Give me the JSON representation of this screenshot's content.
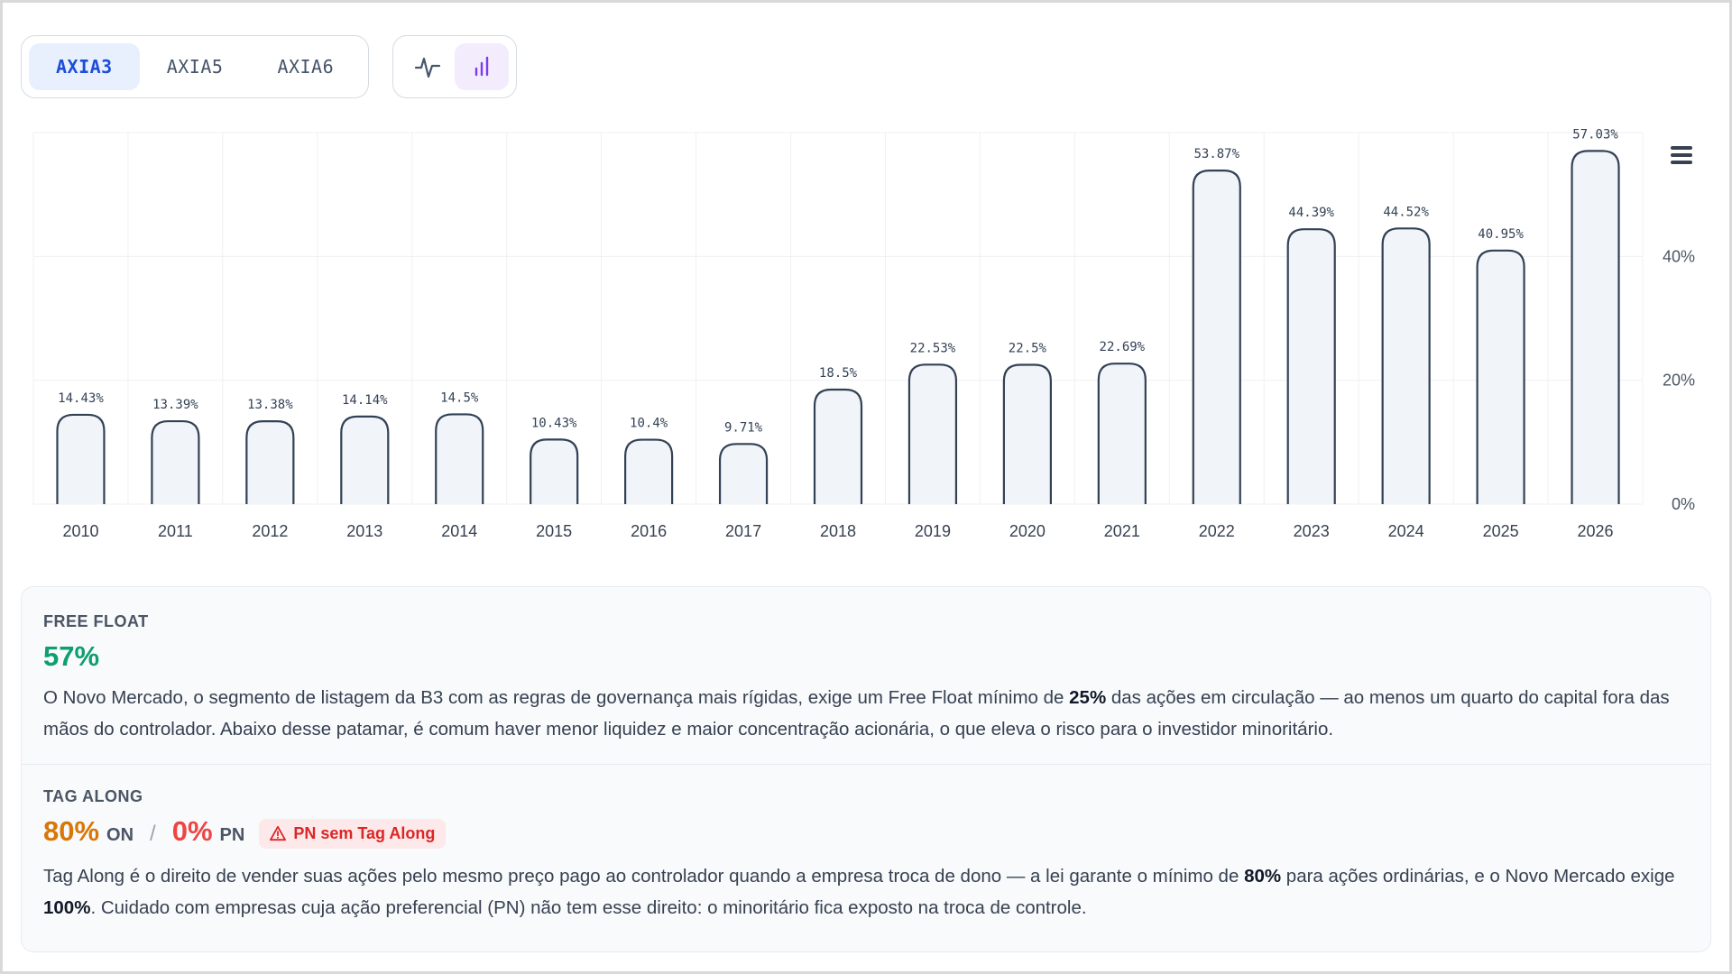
{
  "tickers": [
    {
      "label": "AXIA3",
      "active": true
    },
    {
      "label": "AXIA5",
      "active": false
    },
    {
      "label": "AXIA6",
      "active": false
    }
  ],
  "chart_mode": {
    "line_icon": "line-chart-icon",
    "bar_icon": "bar-chart-icon",
    "active": "bar"
  },
  "chart_data": {
    "type": "bar",
    "categories": [
      "2010",
      "2011",
      "2012",
      "2013",
      "2014",
      "2015",
      "2016",
      "2017",
      "2018",
      "2019",
      "2020",
      "2021",
      "2022",
      "2023",
      "2024",
      "2025",
      "2026"
    ],
    "values": [
      14.43,
      13.39,
      13.38,
      14.14,
      14.5,
      10.43,
      10.4,
      9.71,
      18.5,
      22.53,
      22.5,
      22.69,
      53.87,
      44.39,
      44.52,
      40.95,
      57.03
    ],
    "data_labels": [
      "14.43%",
      "13.39%",
      "13.38%",
      "14.14%",
      "14.5%",
      "10.43%",
      "10.4%",
      "9.71%",
      "18.5%",
      "22.53%",
      "22.5%",
      "22.69%",
      "53.87%",
      "44.39%",
      "44.52%",
      "40.95%",
      "57.03%"
    ],
    "y_ticks": [
      "0%",
      "20%",
      "40%"
    ],
    "y_tick_values": [
      0,
      20,
      40
    ],
    "ylim": [
      0,
      60
    ],
    "y_axis_position": "right",
    "grid": true,
    "legend": "none",
    "colors": {
      "bar_fill": "#f1f5f9",
      "bar_stroke": "#334155",
      "grid": "#eef0f3",
      "label": "#334155"
    }
  },
  "free_float": {
    "title": "FREE FLOAT",
    "value": "57%",
    "text_1": "O Novo Mercado, o segmento de listagem da B3 com as regras de governança mais rígidas, exige um Free Float mínimo de ",
    "bold_1": "25%",
    "text_2": " das ações em circulação — ao menos um quarto do capital fora das mãos do controlador. Abaixo desse patamar, é comum haver menor liquidez e maior concentração acionária, o que eleva o risco para o investidor minoritário."
  },
  "tag_along": {
    "title": "TAG ALONG",
    "on_value": "80%",
    "on_label": "ON",
    "separator": "/",
    "pn_value": "0%",
    "pn_label": "PN",
    "badge": "PN sem Tag Along",
    "text_1": "Tag Along é o direito de vender suas ações pelo mesmo preço pago ao controlador quando a empresa troca de dono — a lei garante o mínimo de ",
    "bold_1": "80%",
    "text_2": " para ações ordinárias, e o Novo Mercado exige ",
    "bold_2": "100%",
    "text_3": ". Cuidado com empresas cuja ação preferencial (PN) não tem esse direito: o minoritário fica exposto na troca de controle."
  },
  "colors": {
    "accent_blue": "#1d4ed8",
    "accent_purple": "#7c3aed",
    "green": "#0f9e6e",
    "orange": "#d97706",
    "red": "#ef4444"
  }
}
